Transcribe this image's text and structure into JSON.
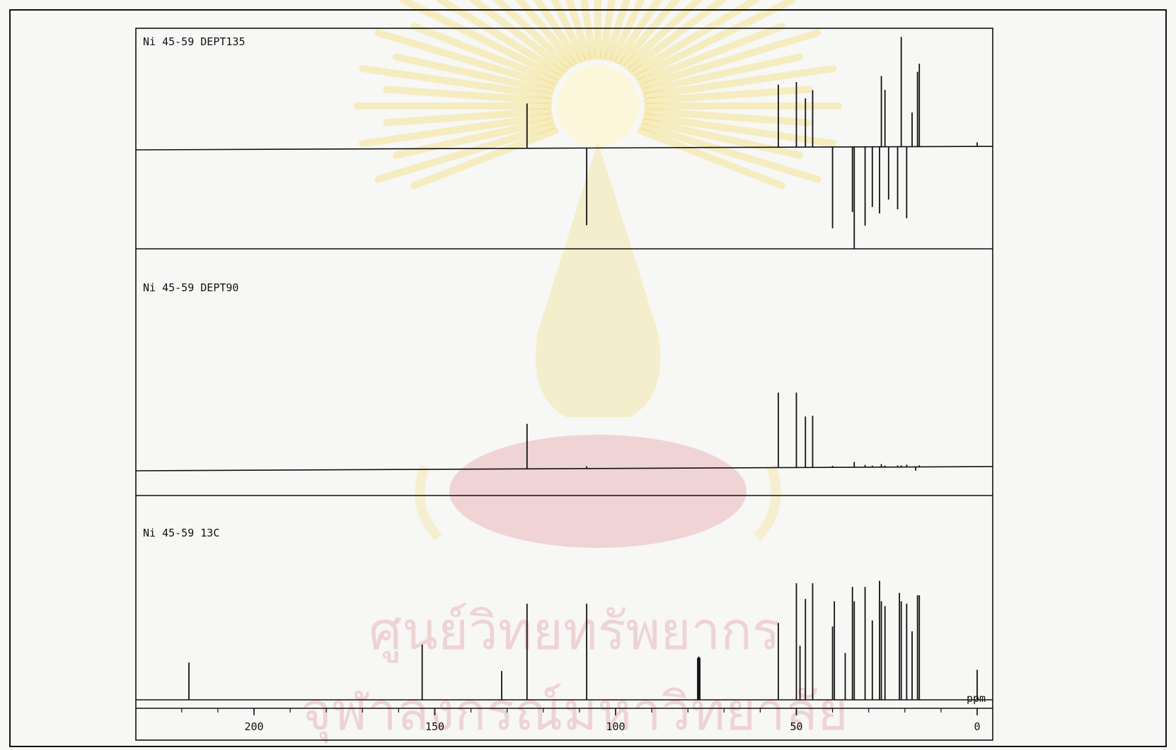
{
  "watermark": {
    "emblem_icon": "royal-emblem-icon",
    "text_line1": "ศูนย์วิทยทรัพยากร",
    "text_line2": "จุฬาลงกรณ์มหาวิทยาลัย",
    "colors": {
      "gold": "#f0d23c",
      "red": "#d23246"
    }
  },
  "chart_data": [
    {
      "type": "stick-spectrum",
      "title": "Ni 45-59 DEPT135",
      "xlim": [
        225,
        -4
      ],
      "x_reversed": true,
      "grid": false,
      "peaks": [
        {
          "x": 124.5,
          "y": 0.55
        },
        {
          "x": 108.0,
          "y": -0.95
        },
        {
          "x": 55.0,
          "y": 0.77
        },
        {
          "x": 50.0,
          "y": 0.8
        },
        {
          "x": 47.5,
          "y": 0.6
        },
        {
          "x": 45.5,
          "y": 0.7
        },
        {
          "x": 40.0,
          "y": -1.0
        },
        {
          "x": 34.5,
          "y": -0.8
        },
        {
          "x": 34.0,
          "y": -1.25
        },
        {
          "x": 31.0,
          "y": -0.97
        },
        {
          "x": 29.0,
          "y": -0.74
        },
        {
          "x": 27.0,
          "y": -0.82
        },
        {
          "x": 26.5,
          "y": 0.87
        },
        {
          "x": 25.5,
          "y": 0.7
        },
        {
          "x": 24.5,
          "y": -0.65
        },
        {
          "x": 22.0,
          "y": -0.77
        },
        {
          "x": 21.0,
          "y": 1.35
        },
        {
          "x": 19.5,
          "y": -0.88
        },
        {
          "x": 18.0,
          "y": 0.42
        },
        {
          "x": 16.5,
          "y": 0.92
        },
        {
          "x": 16.0,
          "y": 1.02
        },
        {
          "x": 0.0,
          "y": 0.05
        }
      ]
    },
    {
      "type": "stick-spectrum",
      "title": "Ni 45-59 DEPT90",
      "xlim": [
        225,
        -4
      ],
      "x_reversed": true,
      "grid": false,
      "peaks": [
        {
          "x": 124.5,
          "y": 0.6
        },
        {
          "x": 108.0,
          "y": 0.03
        },
        {
          "x": 55.0,
          "y": 1.0
        },
        {
          "x": 50.0,
          "y": 1.0
        },
        {
          "x": 47.5,
          "y": 0.68
        },
        {
          "x": 45.5,
          "y": 0.69
        },
        {
          "x": 40.0,
          "y": 0.02
        },
        {
          "x": 34.0,
          "y": 0.07
        },
        {
          "x": 31.0,
          "y": 0.03
        },
        {
          "x": 29.0,
          "y": 0.02
        },
        {
          "x": 26.5,
          "y": 0.04
        },
        {
          "x": 25.5,
          "y": 0.02
        },
        {
          "x": 22.0,
          "y": 0.02
        },
        {
          "x": 21.0,
          "y": 0.02
        },
        {
          "x": 19.5,
          "y": 0.03
        },
        {
          "x": 17.0,
          "y": -0.05
        },
        {
          "x": 16.0,
          "y": 0.02
        }
      ]
    },
    {
      "type": "stick-spectrum",
      "title": "Ni 45-59 13C",
      "xlabel": "ppm",
      "xlim": [
        225,
        -4
      ],
      "x_reversed": true,
      "xticks": [
        {
          "value": 200,
          "label": "200"
        },
        {
          "value": 150,
          "label": "150"
        },
        {
          "value": 100,
          "label": "100"
        },
        {
          "value": 50,
          "label": "50"
        },
        {
          "value": 0,
          "label": "0"
        }
      ],
      "grid": false,
      "peaks": [
        {
          "x": 218.0,
          "y": 0.31
        },
        {
          "x": 153.5,
          "y": 0.46
        },
        {
          "x": 131.5,
          "y": 0.24
        },
        {
          "x": 124.5,
          "y": 0.8
        },
        {
          "x": 108.0,
          "y": 0.8
        },
        {
          "x": 77.3,
          "y": 0.35
        },
        {
          "x": 77.0,
          "y": 0.36
        },
        {
          "x": 76.7,
          "y": 0.35
        },
        {
          "x": 55.0,
          "y": 0.64
        },
        {
          "x": 50.0,
          "y": 0.97
        },
        {
          "x": 49.0,
          "y": 0.45
        },
        {
          "x": 47.5,
          "y": 0.84
        },
        {
          "x": 45.5,
          "y": 0.97
        },
        {
          "x": 40.0,
          "y": 0.61
        },
        {
          "x": 39.5,
          "y": 0.82
        },
        {
          "x": 36.5,
          "y": 0.39
        },
        {
          "x": 34.5,
          "y": 0.94
        },
        {
          "x": 34.0,
          "y": 0.82
        },
        {
          "x": 31.0,
          "y": 0.94
        },
        {
          "x": 29.0,
          "y": 0.66
        },
        {
          "x": 27.0,
          "y": 0.99
        },
        {
          "x": 26.5,
          "y": 0.82
        },
        {
          "x": 25.5,
          "y": 0.78
        },
        {
          "x": 21.5,
          "y": 0.89
        },
        {
          "x": 21.0,
          "y": 0.82
        },
        {
          "x": 19.5,
          "y": 0.8
        },
        {
          "x": 18.0,
          "y": 0.57
        },
        {
          "x": 16.5,
          "y": 0.87
        },
        {
          "x": 16.0,
          "y": 0.87
        },
        {
          "x": 0.0,
          "y": 0.25
        }
      ]
    }
  ]
}
